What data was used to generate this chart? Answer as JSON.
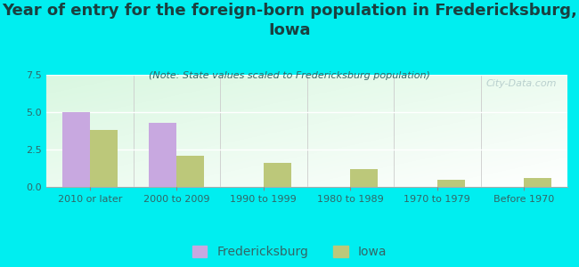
{
  "title": "Year of entry for the foreign-born population in Fredericksburg,\nIowa",
  "subtitle": "(Note: State values scaled to Fredericksburg population)",
  "categories": [
    "2010 or later",
    "2000 to 2009",
    "1990 to 1999",
    "1980 to 1989",
    "1970 to 1979",
    "Before 1970"
  ],
  "fredericksburg_values": [
    5.0,
    4.3,
    0,
    0,
    0,
    0
  ],
  "iowa_values": [
    3.8,
    2.1,
    1.6,
    1.2,
    0.5,
    0.6
  ],
  "fredericksburg_color": "#c8a8e0",
  "iowa_color": "#bcc87a",
  "background_color": "#00eef0",
  "ylim": [
    0,
    7.5
  ],
  "yticks": [
    0,
    2.5,
    5,
    7.5
  ],
  "bar_width": 0.32,
  "title_fontsize": 13,
  "subtitle_fontsize": 8,
  "legend_fontsize": 10,
  "tick_fontsize": 8,
  "watermark": "City-Data.com"
}
